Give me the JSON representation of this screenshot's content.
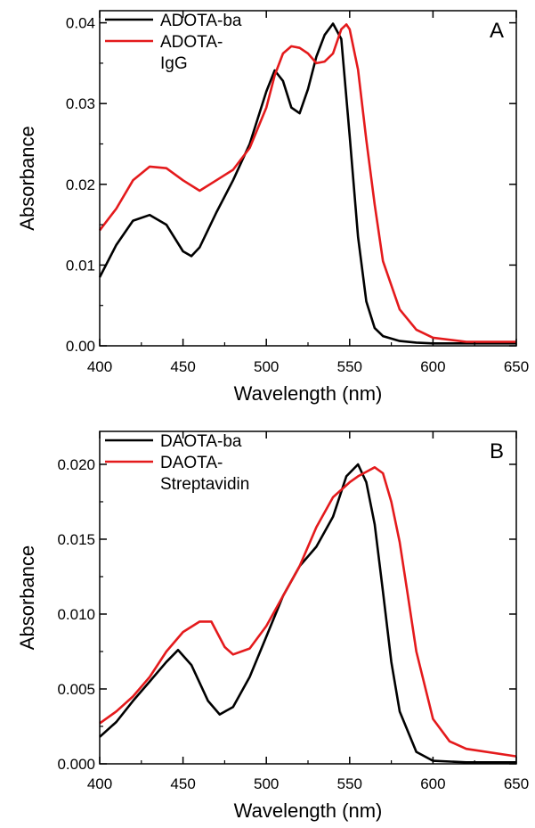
{
  "chart_data": [
    {
      "type": "line",
      "panel_label": "A",
      "xlabel": "Wavelength (nm)",
      "ylabel": "Absorbance",
      "xlim": [
        400,
        650
      ],
      "ylim": [
        0,
        0.0415
      ],
      "xticks": [
        400,
        450,
        500,
        550,
        600,
        650
      ],
      "xtick_labels": [
        "400",
        "450",
        "500",
        "550",
        "600",
        "650"
      ],
      "yticks": [
        0,
        0.01,
        0.02,
        0.03,
        0.04
      ],
      "ytick_labels": [
        "0.00",
        "0.01",
        "0.02",
        "0.03",
        "0.04"
      ],
      "legend_position": "top-left",
      "grid": false,
      "series": [
        {
          "name": "ADOTA-ba",
          "legend_lines": [
            "ADOTA-ba"
          ],
          "color": "#000000",
          "x": [
            400,
            410,
            420,
            430,
            440,
            450,
            455,
            460,
            470,
            480,
            490,
            500,
            505,
            510,
            515,
            520,
            525,
            530,
            535,
            540,
            545,
            550,
            555,
            560,
            565,
            570,
            580,
            590,
            600,
            620,
            650
          ],
          "y": [
            0.0085,
            0.0125,
            0.0155,
            0.0162,
            0.015,
            0.0117,
            0.0111,
            0.0122,
            0.0165,
            0.0205,
            0.025,
            0.0315,
            0.0341,
            0.0328,
            0.0295,
            0.0288,
            0.0318,
            0.0358,
            0.0385,
            0.0399,
            0.038,
            0.026,
            0.0135,
            0.0055,
            0.0022,
            0.0012,
            0.0006,
            0.0004,
            0.0003,
            0.0003,
            0.0003
          ]
        },
        {
          "name": "ADOTA-IgG",
          "legend_lines": [
            "ADOTA-",
            "IgG"
          ],
          "color": "#e41a1c",
          "x": [
            400,
            410,
            420,
            430,
            440,
            450,
            460,
            470,
            480,
            490,
            500,
            505,
            510,
            515,
            520,
            525,
            530,
            535,
            540,
            545,
            548,
            550,
            555,
            560,
            565,
            570,
            580,
            590,
            600,
            620,
            650
          ],
          "y": [
            0.0143,
            0.017,
            0.0205,
            0.0222,
            0.022,
            0.0205,
            0.0192,
            0.0205,
            0.0218,
            0.0245,
            0.0295,
            0.0335,
            0.0362,
            0.0371,
            0.0369,
            0.0362,
            0.035,
            0.0352,
            0.0362,
            0.0392,
            0.0398,
            0.0392,
            0.0342,
            0.0255,
            0.0175,
            0.0105,
            0.0045,
            0.002,
            0.001,
            0.0005,
            0.0005
          ]
        }
      ]
    },
    {
      "type": "line",
      "panel_label": "B",
      "xlabel": "Wavelength (nm)",
      "ylabel": "Absorbance",
      "xlim": [
        400,
        650
      ],
      "ylim": [
        0,
        0.0222
      ],
      "xticks": [
        400,
        450,
        500,
        550,
        600,
        650
      ],
      "xtick_labels": [
        "400",
        "450",
        "500",
        "550",
        "600",
        "650"
      ],
      "yticks": [
        0,
        0.005,
        0.01,
        0.015,
        0.02
      ],
      "ytick_labels": [
        "0.000",
        "0.005",
        "0.010",
        "0.015",
        "0.020"
      ],
      "legend_position": "top-left",
      "grid": false,
      "series": [
        {
          "name": "DAOTA-ba",
          "legend_lines": [
            "DAOTA-ba"
          ],
          "color": "#000000",
          "x": [
            400,
            410,
            420,
            430,
            440,
            447,
            455,
            465,
            472,
            480,
            490,
            500,
            510,
            520,
            530,
            540,
            548,
            555,
            560,
            565,
            570,
            575,
            580,
            590,
            600,
            620,
            650
          ],
          "y": [
            0.0018,
            0.0028,
            0.0042,
            0.0055,
            0.0068,
            0.0076,
            0.0066,
            0.0042,
            0.0033,
            0.0038,
            0.0058,
            0.0085,
            0.0112,
            0.0132,
            0.0145,
            0.0165,
            0.0192,
            0.02,
            0.0188,
            0.016,
            0.0115,
            0.0068,
            0.0035,
            0.0008,
            0.0002,
            0.0001,
            0.0001
          ]
        },
        {
          "name": "DAOTA-Streptavidin",
          "legend_lines": [
            "DAOTA-",
            "Streptavidin"
          ],
          "color": "#e41a1c",
          "x": [
            400,
            410,
            420,
            430,
            440,
            450,
            460,
            467,
            475,
            480,
            490,
            500,
            510,
            520,
            530,
            540,
            550,
            555,
            560,
            565,
            570,
            575,
            580,
            585,
            590,
            600,
            610,
            620,
            650
          ],
          "y": [
            0.0027,
            0.0035,
            0.0045,
            0.0058,
            0.0075,
            0.0088,
            0.0095,
            0.0095,
            0.0078,
            0.0073,
            0.0077,
            0.0092,
            0.0112,
            0.0132,
            0.0158,
            0.0178,
            0.0188,
            0.0192,
            0.0195,
            0.0198,
            0.0194,
            0.0175,
            0.0148,
            0.0112,
            0.0075,
            0.003,
            0.0015,
            0.001,
            0.0005
          ]
        }
      ]
    }
  ]
}
